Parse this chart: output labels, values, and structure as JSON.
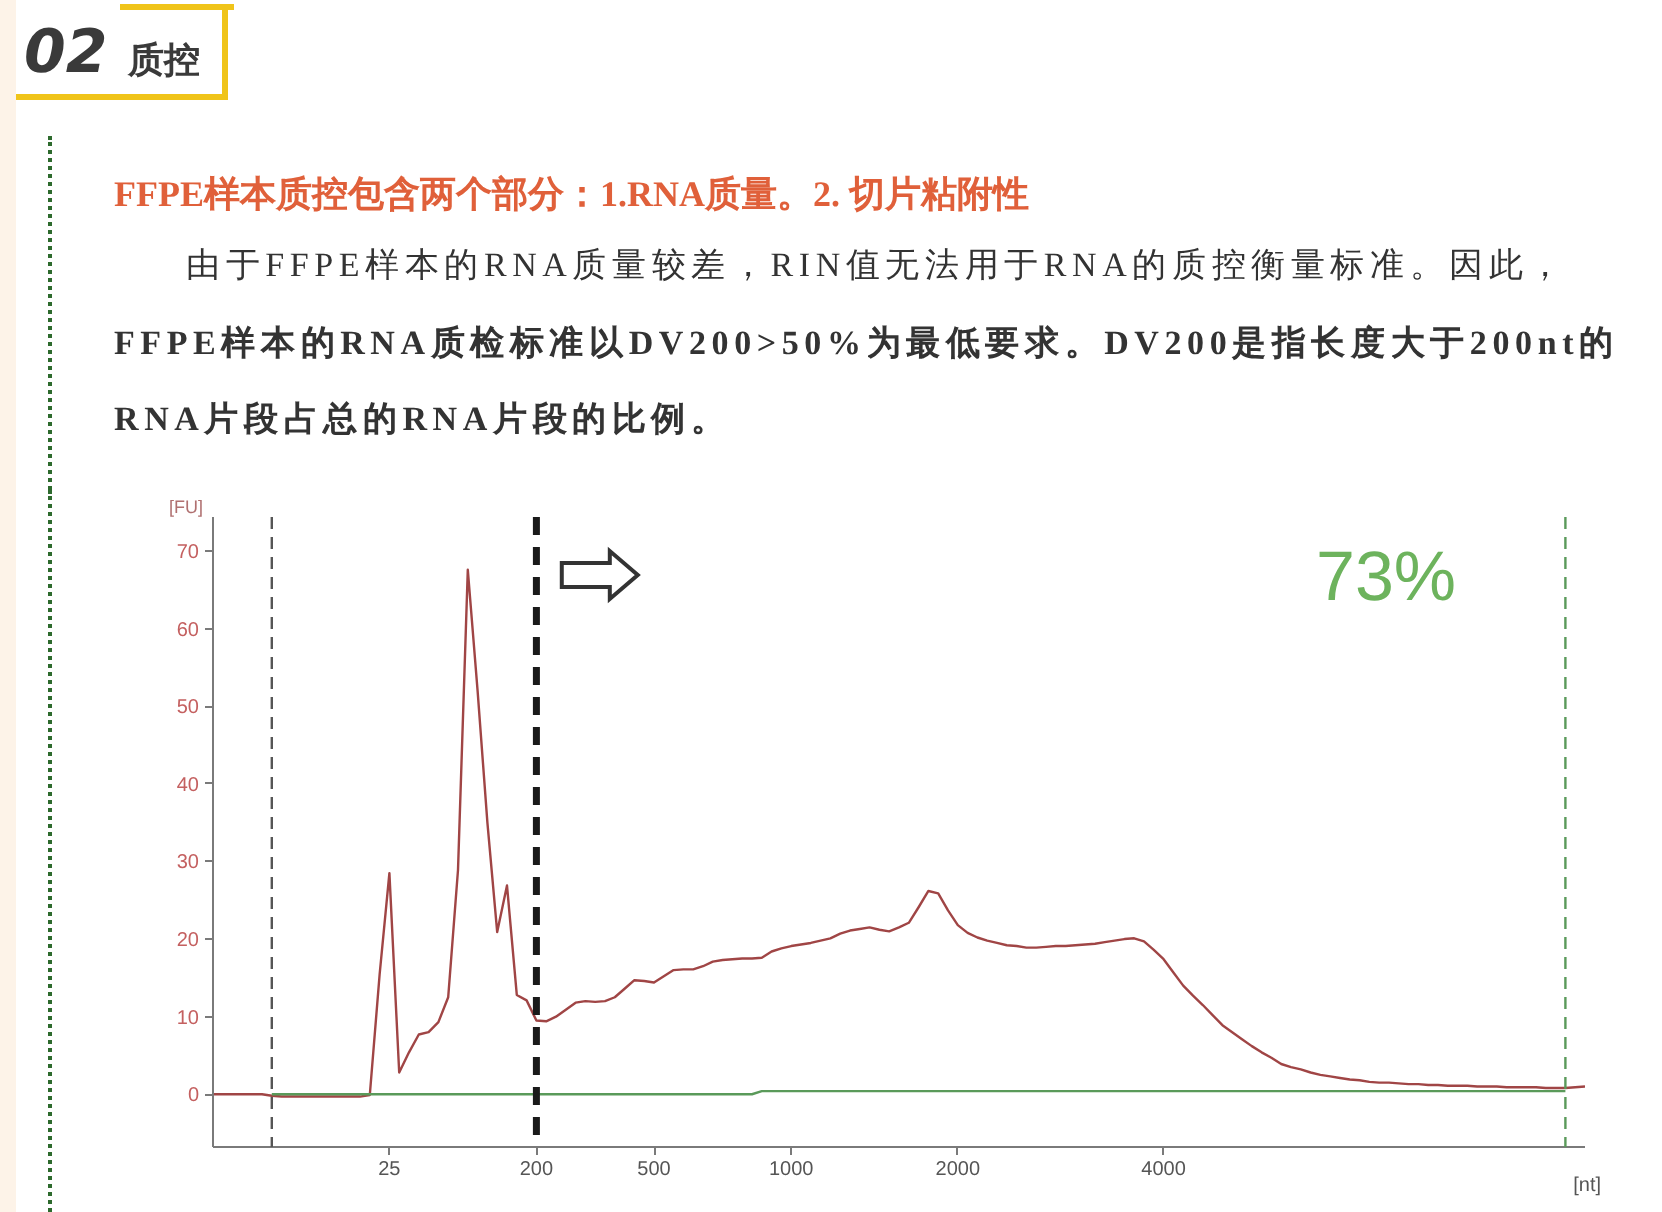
{
  "chart_data": {
    "type": "line",
    "title": "02 质控",
    "subtitle": "FFPE样本质控包含两个部分：1.RNA质量。2. 切片粘附性",
    "annotations": [
      "由于FFPE样本的RNA质量较差，RIN值无法用于RNA的质控衡量标准。因此，",
      "FFPE样本的RNA质检标准以DV200>50%为最低要求。DV200是指长度大于200nt的RNA片段占总的RNA片段的比例。",
      "73%"
    ],
    "xlabel": "[nt]",
    "ylabel": "[FU]",
    "categories": [
      null,
      null,
      null,
      null,
      null,
      null,
      null,
      null,
      null,
      null,
      null,
      null,
      null,
      null,
      null,
      null,
      null,
      null,
      "25",
      null,
      null,
      null,
      null,
      null,
      null,
      null,
      null,
      null,
      null,
      null,
      null,
      null,
      null,
      "200",
      null,
      null,
      null,
      null,
      null,
      null,
      null,
      null,
      null,
      null,
      null,
      "500",
      null,
      null,
      null,
      null,
      null,
      null,
      null,
      null,
      null,
      null,
      null,
      null,
      null,
      "1000",
      null,
      null,
      null,
      null,
      null,
      null,
      null,
      null,
      null,
      null,
      null,
      null,
      null,
      null,
      null,
      null,
      "2000",
      null,
      null,
      null,
      null,
      null,
      null,
      null,
      null,
      null,
      null,
      null,
      null,
      null,
      null,
      null,
      null,
      null,
      null,
      null,
      null,
      "4000",
      null,
      null,
      null,
      null,
      null,
      null,
      null,
      null,
      null,
      null,
      null,
      null,
      null,
      null,
      null,
      null,
      null,
      null,
      null,
      null,
      null,
      null,
      null,
      null,
      null,
      null,
      null,
      null,
      null,
      null,
      null,
      null,
      null,
      null,
      null,
      null,
      null,
      null,
      null,
      null,
      null,
      null,
      null
    ],
    "ylim": [
      -6.8,
      74.4
    ],
    "yticks": [
      0,
      10,
      20,
      30,
      40,
      50,
      60,
      70
    ],
    "grid": false,
    "ref_lines": [
      {
        "axis": "x",
        "value": "200",
        "color": "#1a1a1a",
        "line_style": "dashed"
      }
    ],
    "series": [
      {
        "color": "#a04545",
        "values": [
          0,
          0,
          0,
          0,
          0,
          0,
          -0.2,
          -0.3,
          -0.3,
          -0.3,
          -0.3,
          -0.3,
          -0.3,
          -0.3,
          -0.3,
          -0.3,
          -0.1,
          15.4,
          28.5,
          2.8,
          5.4,
          7.7,
          8.0,
          9.3,
          12.5,
          28.9,
          67.6,
          52.0,
          35.0,
          20.9,
          26.9,
          12.8,
          12.1,
          9.5,
          9.4,
          10.0,
          10.9,
          11.8,
          12.0,
          11.9,
          12.0,
          12.5,
          13.6,
          14.7,
          14.6,
          14.4,
          15.2,
          16.0,
          16.1,
          16.1,
          16.5,
          17.1,
          17.3,
          17.4,
          17.5,
          17.5,
          17.6,
          18.4,
          18.8,
          19.1,
          19.3,
          19.5,
          19.8,
          20.1,
          20.7,
          21.1,
          21.3,
          21.5,
          21.2,
          21.0,
          21.5,
          22.1,
          24.1,
          26.2,
          25.9,
          23.7,
          21.8,
          20.8,
          20.2,
          19.8,
          19.5,
          19.2,
          19.1,
          18.9,
          18.9,
          19.0,
          19.1,
          19.1,
          19.2,
          19.3,
          19.4,
          19.6,
          19.8,
          20.0,
          20.1,
          19.7,
          18.6,
          17.4,
          15.7,
          14.0,
          12.7,
          11.5,
          10.2,
          8.9,
          8.0,
          7.1,
          6.2,
          5.4,
          4.7,
          3.9,
          3.5,
          3.2,
          2.8,
          2.5,
          2.3,
          2.1,
          1.9,
          1.8,
          1.6,
          1.5,
          1.5,
          1.4,
          1.3,
          1.3,
          1.2,
          1.2,
          1.1,
          1.1,
          1.1,
          1.0,
          1.0,
          1.0,
          0.9,
          0.9,
          0.9,
          0.9,
          0.8,
          0.8,
          0.8,
          0.9,
          1.0
        ]
      },
      {
        "color": "#5a9a5a",
        "values": [
          null,
          null,
          null,
          null,
          null,
          null,
          0,
          0,
          0,
          0,
          0,
          0,
          0,
          0,
          0,
          0,
          0,
          0,
          0,
          0,
          0,
          0,
          0,
          0,
          0,
          0,
          0,
          0,
          0,
          0,
          0,
          0,
          0,
          0,
          0,
          0,
          0,
          0,
          0,
          0,
          0,
          0,
          0,
          0,
          0,
          0,
          0,
          0,
          0,
          0,
          0,
          0,
          0,
          0,
          0,
          0,
          0.4,
          0.4,
          0.4,
          0.4,
          0.4,
          0.4,
          0.4,
          0.4,
          0.4,
          0.4,
          0.4,
          0.4,
          0.4,
          0.4,
          0.4,
          0.4,
          0.4,
          0.4,
          0.4,
          0.4,
          0.4,
          0.4,
          0.4,
          0.4,
          0.4,
          0.4,
          0.4,
          0.4,
          0.4,
          0.4,
          0.4,
          0.4,
          0.4,
          0.4,
          0.4,
          0.4,
          0.4,
          0.4,
          0.4,
          0.4,
          0.4,
          0.4,
          0.4,
          0.4,
          0.4,
          0.4,
          0.4,
          0.4,
          0.4,
          0.4,
          0.4,
          0.4,
          0.4,
          0.4,
          0.4,
          0.4,
          0.4,
          0.4,
          0.4,
          0.4,
          0.4,
          0.4,
          0.4,
          0.4,
          0.4,
          0.4,
          0.4,
          0.4,
          0.4,
          0.4,
          0.4,
          0.4,
          0.4,
          0.4,
          0.4,
          0.4,
          0.4,
          0.4,
          0.4,
          0.4,
          0.4,
          0.4,
          0.4,
          null,
          null
        ]
      }
    ]
  }
}
